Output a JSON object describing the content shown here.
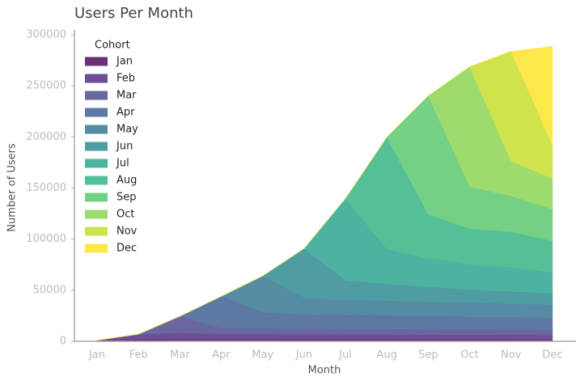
{
  "chart_data": {
    "type": "stacked_area",
    "title": "Users Per Month",
    "x_label": "Month",
    "y_label": "Number of Users",
    "categories": [
      "Jan",
      "Feb",
      "Mar",
      "Apr",
      "May",
      "Jun",
      "Jul",
      "Aug",
      "Sep",
      "Oct",
      "Nov",
      "Dec"
    ],
    "legend_title": "Cohort",
    "legend_position": "upper left",
    "ylim": [
      0,
      300000
    ],
    "yticks": [
      0,
      50000,
      100000,
      150000,
      200000,
      250000,
      300000
    ],
    "series": [
      {
        "name": "Jan",
        "color": "#6b3077",
        "values": [
          1000,
          2000,
          2200,
          2200,
          2200,
          2100,
          2100,
          2100,
          2000,
          2000,
          2000,
          1900
        ]
      },
      {
        "name": "Feb",
        "color": "#6e4e96",
        "values": [
          0,
          5000,
          6000,
          5000,
          5000,
          4900,
          4800,
          4700,
          4600,
          4500,
          4400,
          4300
        ]
      },
      {
        "name": "Mar",
        "color": "#6a66a0",
        "values": [
          0,
          0,
          16300,
          5800,
          5600,
          5500,
          5400,
          5300,
          5200,
          5100,
          5000,
          4900
        ]
      },
      {
        "name": "Apr",
        "color": "#5c78a3",
        "values": [
          0,
          0,
          0,
          31000,
          15700,
          13800,
          13500,
          13200,
          12900,
          12600,
          12400,
          12200
        ]
      },
      {
        "name": "May",
        "color": "#558ba3",
        "values": [
          0,
          0,
          0,
          0,
          35500,
          16500,
          15000,
          14500,
          14000,
          13500,
          13000,
          12500
        ]
      },
      {
        "name": "Jun",
        "color": "#4f9ca2",
        "values": [
          0,
          0,
          0,
          0,
          0,
          48000,
          19000,
          16500,
          14600,
          13000,
          12000,
          11500
        ]
      },
      {
        "name": "Jul",
        "color": "#4db3a0",
        "values": [
          0,
          0,
          0,
          0,
          0,
          0,
          80000,
          34000,
          28000,
          24600,
          24000,
          20000
        ]
      },
      {
        "name": "Aug",
        "color": "#55c096",
        "values": [
          0,
          0,
          0,
          0,
          0,
          0,
          0,
          109500,
          43000,
          35000,
          34500,
          31000
        ]
      },
      {
        "name": "Sep",
        "color": "#74d085",
        "values": [
          0,
          0,
          0,
          0,
          0,
          0,
          0,
          0,
          116000,
          41000,
          35000,
          31000
        ]
      },
      {
        "name": "Oct",
        "color": "#9ddb6e",
        "values": [
          0,
          0,
          0,
          0,
          0,
          0,
          0,
          0,
          0,
          117500,
          34000,
          30000
        ]
      },
      {
        "name": "Nov",
        "color": "#cfe34c",
        "values": [
          0,
          0,
          0,
          0,
          0,
          0,
          0,
          0,
          0,
          0,
          107500,
          33000
        ]
      },
      {
        "name": "Dec",
        "color": "#fde84c",
        "values": [
          0,
          0,
          0,
          0,
          0,
          0,
          0,
          0,
          0,
          0,
          0,
          96500
        ]
      }
    ]
  }
}
